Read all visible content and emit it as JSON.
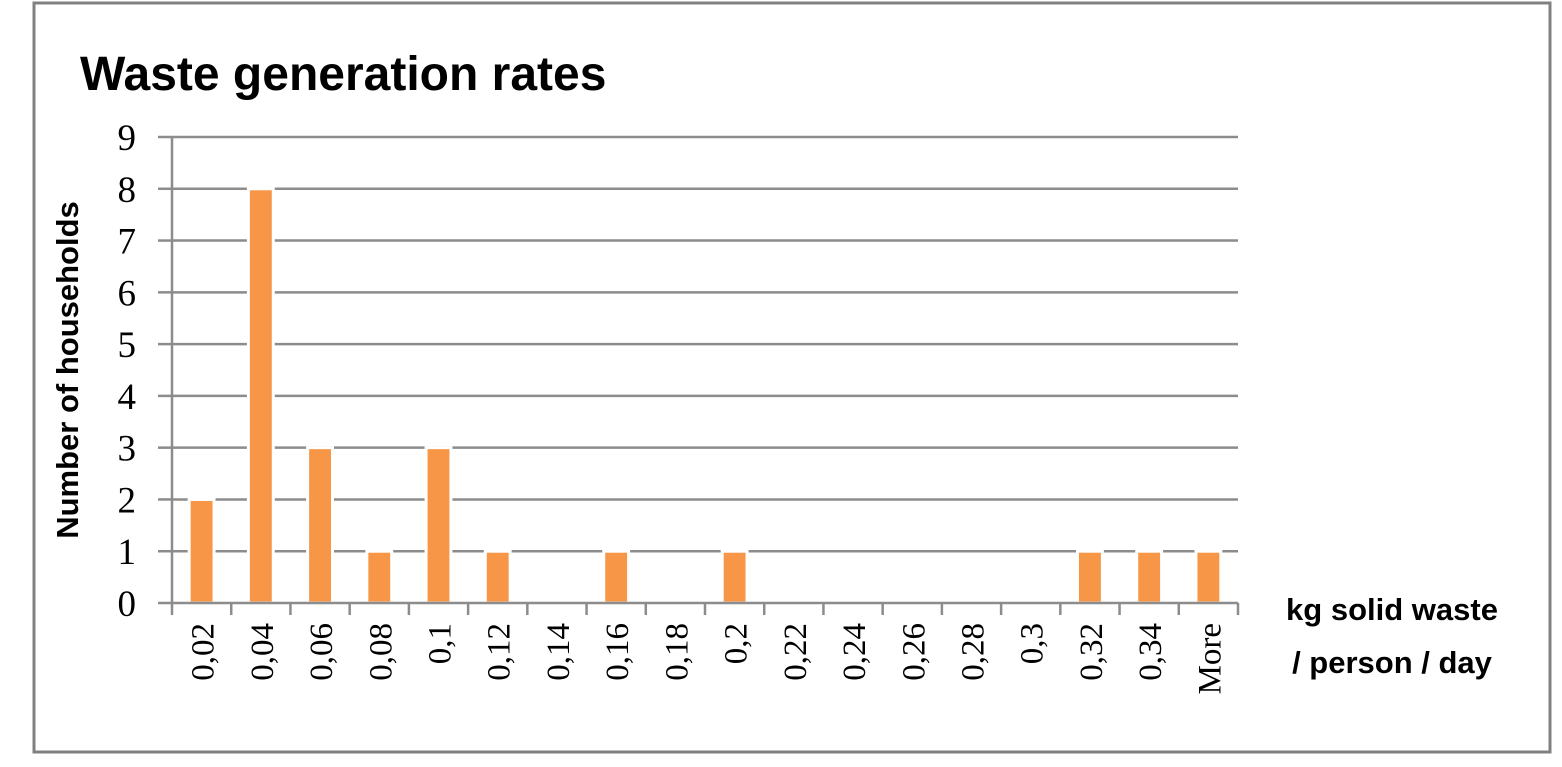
{
  "chart_data": {
    "type": "bar",
    "title": "Waste generation rates",
    "ylabel": "Number of households",
    "xlabel_lines": [
      "kg solid waste",
      "/ person / day"
    ],
    "categories": [
      "0,02",
      "0,04",
      "0,06",
      "0,08",
      "0,1",
      "0,12",
      "0,14",
      "0,16",
      "0,18",
      "0,2",
      "0,22",
      "0,24",
      "0,26",
      "0,28",
      "0,3",
      "0,32",
      "0,34",
      "More"
    ],
    "values": [
      2,
      8,
      3,
      1,
      3,
      1,
      0,
      1,
      0,
      1,
      0,
      0,
      0,
      0,
      0,
      1,
      1,
      1
    ],
    "ylim": [
      0,
      9
    ],
    "yticks": [
      "0",
      "1",
      "2",
      "3",
      "4",
      "5",
      "6",
      "7",
      "8",
      "9"
    ],
    "grid": true,
    "legend": "none",
    "bar_color": "#f79646",
    "grid_color": "#8c8c8c",
    "border_color": "#808080"
  }
}
